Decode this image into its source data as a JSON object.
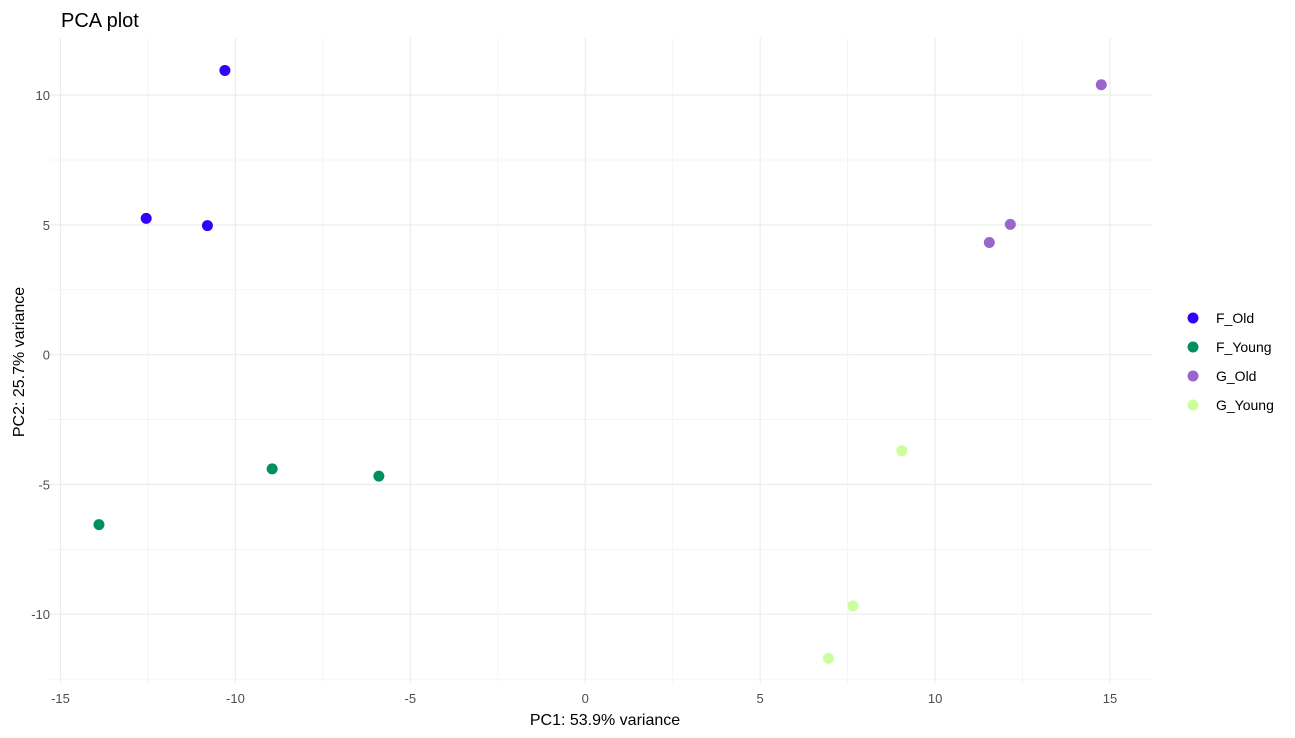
{
  "chart_data": {
    "type": "scatter",
    "title": "PCA plot",
    "xlabel": "PC1: 53.9% variance",
    "ylabel": "PC2: 25.7% variance",
    "xlim": [
      -15.3,
      16.2
    ],
    "ylim": [
      -12.65,
      12.2
    ],
    "xticks": [
      -15,
      -10,
      -5,
      0,
      5,
      10,
      15
    ],
    "xtick_labels": [
      "-15",
      "-10",
      "-5",
      "0",
      "5",
      "10",
      "15"
    ],
    "yticks": [
      -10,
      -5,
      0,
      5,
      10
    ],
    "ytick_labels": [
      "-10",
      "-5",
      "0",
      "5",
      "10"
    ],
    "grid": true,
    "legend_position": "right",
    "series": [
      {
        "name": "F_Old",
        "color": "#3300ff",
        "points": [
          {
            "x": -10.3,
            "y": 10.95
          },
          {
            "x": -12.55,
            "y": 5.25
          },
          {
            "x": -10.8,
            "y": 4.97
          }
        ]
      },
      {
        "name": "F_Young",
        "color": "#008f5f",
        "points": [
          {
            "x": -8.95,
            "y": -4.4
          },
          {
            "x": -5.9,
            "y": -4.68
          },
          {
            "x": -13.9,
            "y": -6.55
          }
        ]
      },
      {
        "name": "G_Old",
        "color": "#9966cc",
        "points": [
          {
            "x": 14.75,
            "y": 10.4
          },
          {
            "x": 12.15,
            "y": 5.02
          },
          {
            "x": 11.55,
            "y": 4.32
          }
        ]
      },
      {
        "name": "G_Young",
        "color": "#ccff99",
        "points": [
          {
            "x": 9.05,
            "y": -3.7
          },
          {
            "x": 7.65,
            "y": -9.68
          },
          {
            "x": 6.95,
            "y": -11.7
          }
        ]
      }
    ]
  }
}
